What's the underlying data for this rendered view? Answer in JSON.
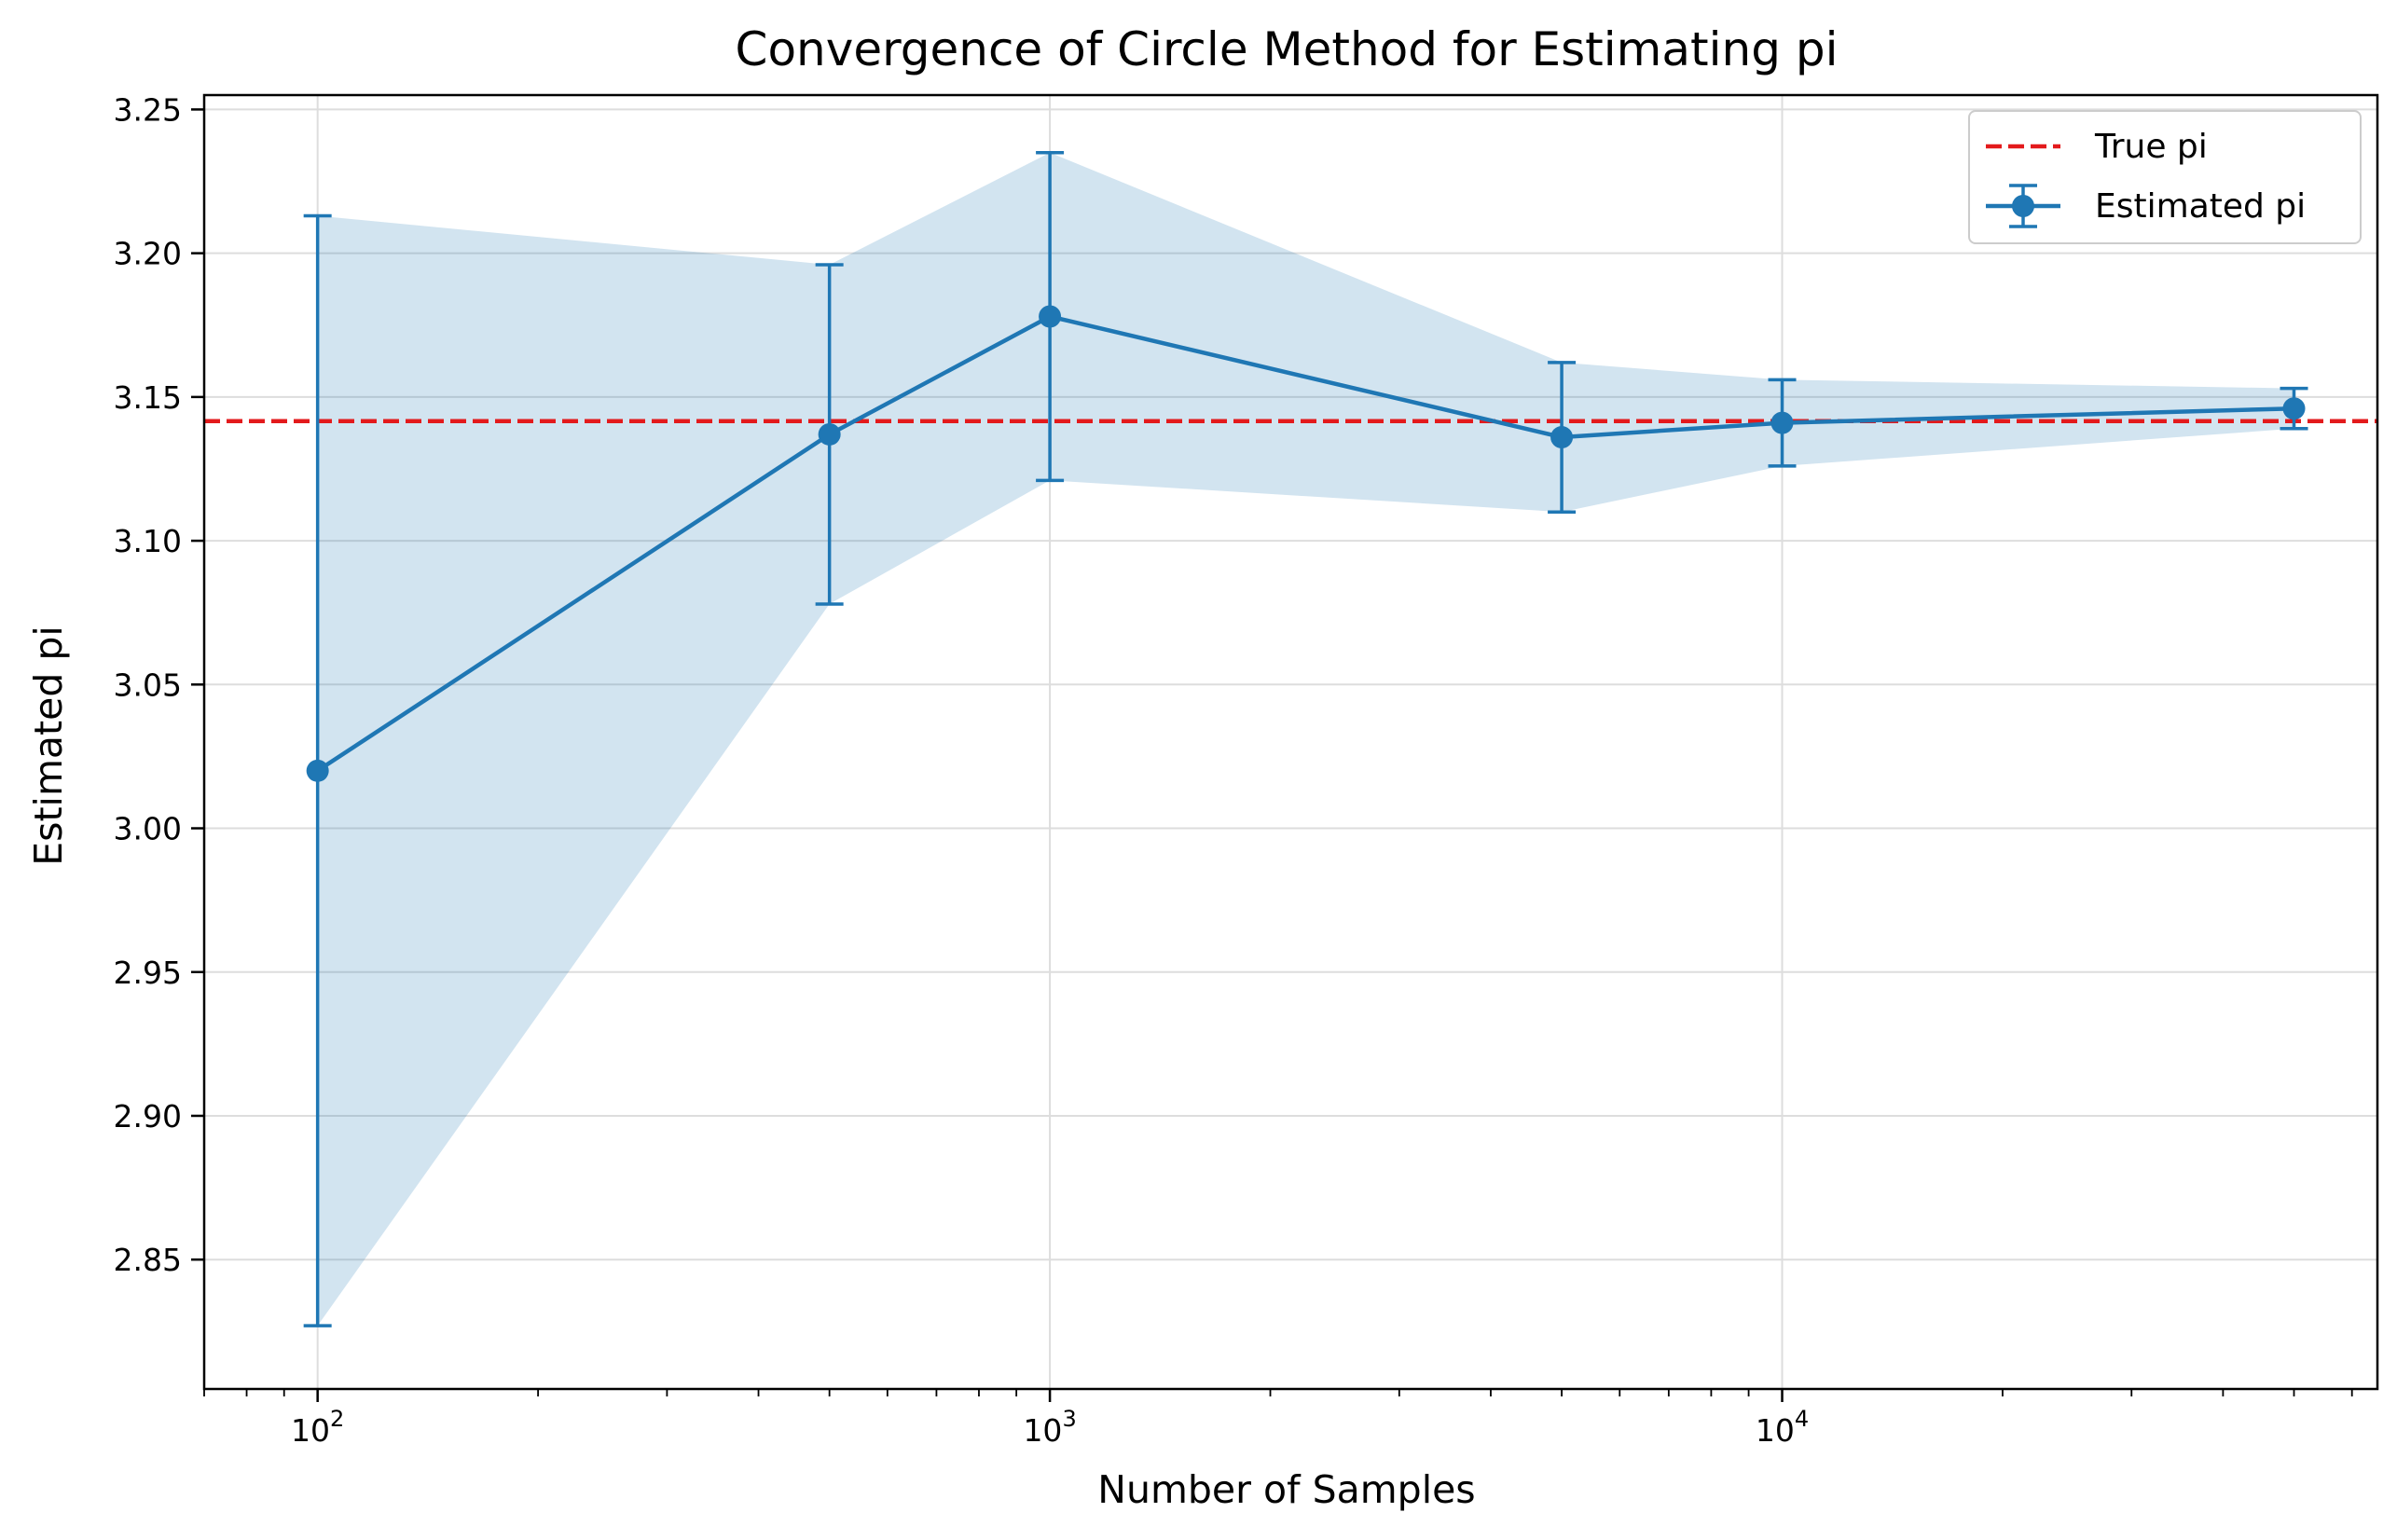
{
  "chart_data": {
    "type": "line",
    "title": "Convergence of Circle Method for Estimating pi",
    "xlabel": "Number of Samples",
    "ylabel": "Estimated pi",
    "x_scale": "log",
    "xlim": [
      70,
      65000
    ],
    "ylim": [
      2.805,
      3.255
    ],
    "grid": true,
    "legend_position": "top-right",
    "x_ticks": [
      {
        "value": 100,
        "base": "10",
        "exp": "2"
      },
      {
        "value": 1000,
        "base": "10",
        "exp": "3"
      },
      {
        "value": 10000,
        "base": "10",
        "exp": "4"
      }
    ],
    "y_ticks": [
      {
        "value": 2.85,
        "label": "2.85"
      },
      {
        "value": 2.9,
        "label": "2.90"
      },
      {
        "value": 2.95,
        "label": "2.95"
      },
      {
        "value": 3.0,
        "label": "3.00"
      },
      {
        "value": 3.05,
        "label": "3.05"
      },
      {
        "value": 3.1,
        "label": "3.10"
      },
      {
        "value": 3.15,
        "label": "3.15"
      },
      {
        "value": 3.2,
        "label": "3.20"
      },
      {
        "value": 3.25,
        "label": "3.25"
      }
    ],
    "reference_line": {
      "name": "True pi",
      "value": 3.14159,
      "color": "#e31a1c",
      "style": "dashed"
    },
    "series": [
      {
        "name": "Estimated pi",
        "color": "#1f77b4",
        "x": [
          100,
          500,
          1000,
          5000,
          10000,
          50000
        ],
        "y": [
          3.02,
          3.137,
          3.178,
          3.136,
          3.141,
          3.146
        ],
        "error": [
          0.193,
          0.059,
          0.057,
          0.026,
          0.015,
          0.007
        ]
      }
    ],
    "band_color": "#1f77b4",
    "band_opacity": 0.2
  }
}
